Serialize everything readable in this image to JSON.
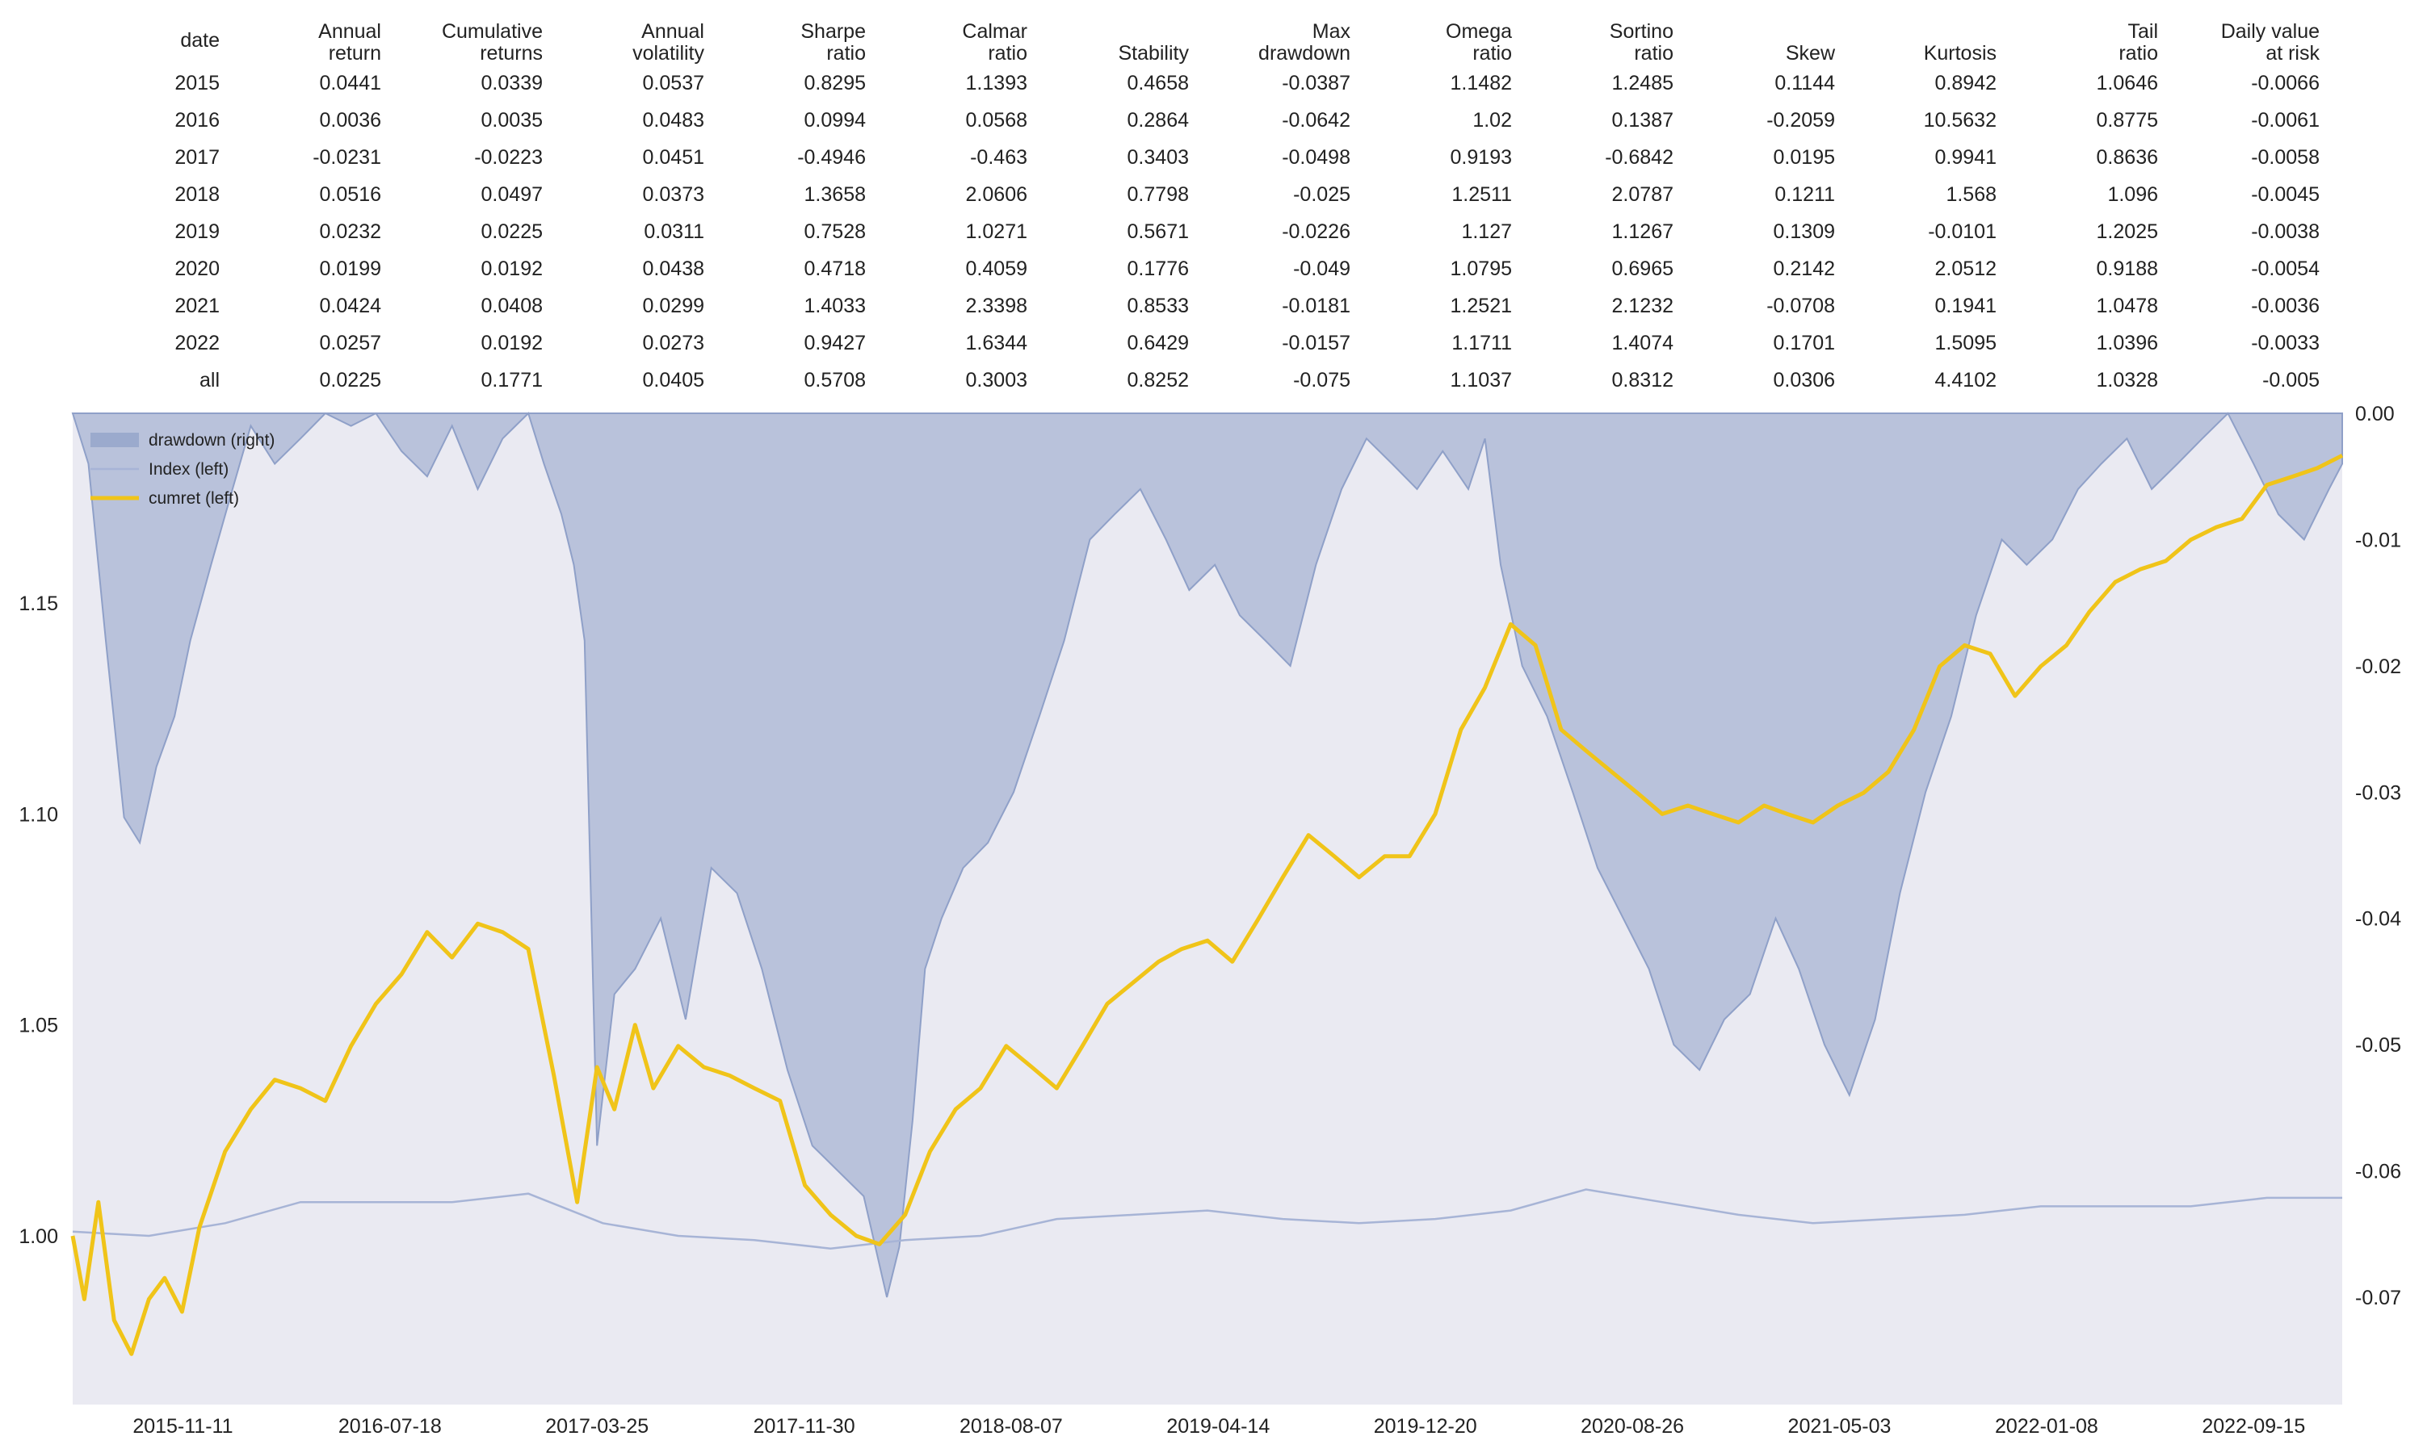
{
  "table": {
    "headers": [
      "date",
      "Annual\nreturn",
      "Cumulative\nreturns",
      "Annual\nvolatility",
      "Sharpe\nratio",
      "Calmar\nratio",
      "Stability",
      "Max\ndrawdown",
      "Omega\nratio",
      "Sortino\nratio",
      "Skew",
      "Kurtosis",
      "Tail\nratio",
      "Daily value\nat risk"
    ],
    "rows": [
      [
        "2015",
        "0.0441",
        "0.0339",
        "0.0537",
        "0.8295",
        "1.1393",
        "0.4658",
        "-0.0387",
        "1.1482",
        "1.2485",
        "0.1144",
        "0.8942",
        "1.0646",
        "-0.0066"
      ],
      [
        "2016",
        "0.0036",
        "0.0035",
        "0.0483",
        "0.0994",
        "0.0568",
        "0.2864",
        "-0.0642",
        "1.02",
        "0.1387",
        "-0.2059",
        "10.5632",
        "0.8775",
        "-0.0061"
      ],
      [
        "2017",
        "-0.0231",
        "-0.0223",
        "0.0451",
        "-0.4946",
        "-0.463",
        "0.3403",
        "-0.0498",
        "0.9193",
        "-0.6842",
        "0.0195",
        "0.9941",
        "0.8636",
        "-0.0058"
      ],
      [
        "2018",
        "0.0516",
        "0.0497",
        "0.0373",
        "1.3658",
        "2.0606",
        "0.7798",
        "-0.025",
        "1.2511",
        "2.0787",
        "0.1211",
        "1.568",
        "1.096",
        "-0.0045"
      ],
      [
        "2019",
        "0.0232",
        "0.0225",
        "0.0311",
        "0.7528",
        "1.0271",
        "0.5671",
        "-0.0226",
        "1.127",
        "1.1267",
        "0.1309",
        "-0.0101",
        "1.2025",
        "-0.0038"
      ],
      [
        "2020",
        "0.0199",
        "0.0192",
        "0.0438",
        "0.4718",
        "0.4059",
        "0.1776",
        "-0.049",
        "1.0795",
        "0.6965",
        "0.2142",
        "2.0512",
        "0.9188",
        "-0.0054"
      ],
      [
        "2021",
        "0.0424",
        "0.0408",
        "0.0299",
        "1.4033",
        "2.3398",
        "0.8533",
        "-0.0181",
        "1.2521",
        "2.1232",
        "-0.0708",
        "0.1941",
        "1.0478",
        "-0.0036"
      ],
      [
        "2022",
        "0.0257",
        "0.0192",
        "0.0273",
        "0.9427",
        "1.6344",
        "0.6429",
        "-0.0157",
        "1.1711",
        "1.4074",
        "0.1701",
        "1.5095",
        "1.0396",
        "-0.0033"
      ],
      [
        "all",
        "0.0225",
        "0.1771",
        "0.0405",
        "0.5708",
        "0.3003",
        "0.8252",
        "-0.075",
        "1.1037",
        "0.8312",
        "0.0306",
        "4.4102",
        "1.0328",
        "-0.005"
      ]
    ]
  },
  "chart_data": {
    "type": "line",
    "x_tick_labels": [
      "2015-11-11",
      "2016-07-18",
      "2017-03-25",
      "2017-11-30",
      "2018-08-07",
      "2019-04-14",
      "2019-12-20",
      "2020-08-26",
      "2021-05-03",
      "2022-01-08",
      "2022-09-15"
    ],
    "x_range": [
      "2015-07-01",
      "2022-12-31"
    ],
    "left_axis": {
      "ticks": [
        1.0,
        1.05,
        1.1,
        1.15
      ],
      "tick_labels": [
        "1.00",
        "1.05",
        "1.10",
        "1.15"
      ],
      "ylim": [
        0.96,
        1.195
      ]
    },
    "right_axis": {
      "ticks": [
        0.0,
        -0.01,
        -0.02,
        -0.03,
        -0.04,
        -0.05,
        -0.06,
        -0.07
      ],
      "tick_labels": [
        "0.00",
        "-0.01",
        "-0.02",
        "-0.03",
        "-0.04",
        "-0.05",
        "-0.06",
        "-0.07"
      ],
      "ylim": [
        -0.0785,
        0.0
      ]
    },
    "legend_position": "top-left",
    "grid": false,
    "series": [
      {
        "name": "drawdown (right)",
        "axis": "right",
        "style": "area",
        "color": "#8fa0c8",
        "x": [
          "2015-07-01",
          "2015-07-20",
          "2015-08-10",
          "2015-09-01",
          "2015-09-20",
          "2015-10-10",
          "2015-11-01",
          "2015-11-20",
          "2015-12-15",
          "2016-01-10",
          "2016-02-01",
          "2016-03-01",
          "2016-04-01",
          "2016-05-01",
          "2016-06-01",
          "2016-07-01",
          "2016-08-01",
          "2016-09-01",
          "2016-10-01",
          "2016-11-01",
          "2016-12-01",
          "2017-01-01",
          "2017-01-20",
          "2017-02-10",
          "2017-02-25",
          "2017-03-10",
          "2017-03-25",
          "2017-04-15",
          "2017-05-10",
          "2017-06-10",
          "2017-07-10",
          "2017-08-10",
          "2017-09-10",
          "2017-10-10",
          "2017-11-10",
          "2017-12-10",
          "2018-01-10",
          "2018-02-10",
          "2018-03-10",
          "2018-03-25",
          "2018-04-10",
          "2018-04-25",
          "2018-05-15",
          "2018-06-10",
          "2018-07-10",
          "2018-08-10",
          "2018-09-10",
          "2018-10-10",
          "2018-11-10",
          "2018-12-10",
          "2019-01-10",
          "2019-02-10",
          "2019-03-10",
          "2019-04-10",
          "2019-05-10",
          "2019-06-10",
          "2019-07-10",
          "2019-08-10",
          "2019-09-10",
          "2019-10-10",
          "2019-11-10",
          "2019-12-10",
          "2020-01-10",
          "2020-02-10",
          "2020-03-01",
          "2020-03-20",
          "2020-04-15",
          "2020-05-15",
          "2020-06-15",
          "2020-07-15",
          "2020-08-15",
          "2020-09-15",
          "2020-10-15",
          "2020-11-15",
          "2020-12-15",
          "2021-01-15",
          "2021-02-15",
          "2021-03-15",
          "2021-04-15",
          "2021-05-15",
          "2021-06-15",
          "2021-07-15",
          "2021-08-15",
          "2021-09-15",
          "2021-10-15",
          "2021-11-15",
          "2021-12-15",
          "2022-01-15",
          "2022-02-15",
          "2022-03-15",
          "2022-04-15",
          "2022-05-15",
          "2022-06-15",
          "2022-07-15",
          "2022-08-15",
          "2022-09-15",
          "2022-10-15",
          "2022-11-15",
          "2022-12-15",
          "2022-12-31"
        ],
        "values": [
          0.0,
          -0.004,
          -0.018,
          -0.032,
          -0.034,
          -0.028,
          -0.024,
          -0.018,
          -0.012,
          -0.006,
          -0.001,
          -0.004,
          -0.002,
          0.0,
          -0.001,
          0.0,
          -0.003,
          -0.005,
          -0.001,
          -0.006,
          -0.002,
          0.0,
          -0.004,
          -0.008,
          -0.012,
          -0.018,
          -0.058,
          -0.046,
          -0.044,
          -0.04,
          -0.048,
          -0.036,
          -0.038,
          -0.044,
          -0.052,
          -0.058,
          -0.06,
          -0.062,
          -0.07,
          -0.066,
          -0.056,
          -0.044,
          -0.04,
          -0.036,
          -0.034,
          -0.03,
          -0.024,
          -0.018,
          -0.01,
          -0.008,
          -0.006,
          -0.01,
          -0.014,
          -0.012,
          -0.016,
          -0.018,
          -0.02,
          -0.012,
          -0.006,
          -0.002,
          -0.004,
          -0.006,
          -0.003,
          -0.006,
          -0.002,
          -0.012,
          -0.02,
          -0.024,
          -0.03,
          -0.036,
          -0.04,
          -0.044,
          -0.05,
          -0.052,
          -0.048,
          -0.046,
          -0.04,
          -0.044,
          -0.05,
          -0.054,
          -0.048,
          -0.038,
          -0.03,
          -0.024,
          -0.016,
          -0.01,
          -0.012,
          -0.01,
          -0.006,
          -0.004,
          -0.002,
          -0.006,
          -0.004,
          -0.002,
          0.0,
          -0.004,
          -0.008,
          -0.01,
          -0.006,
          -0.004
        ]
      },
      {
        "name": "Index (left)",
        "axis": "left",
        "style": "line",
        "color": "#a7b4d6",
        "x": [
          "2015-07-01",
          "2015-10-01",
          "2016-01-01",
          "2016-04-01",
          "2016-07-01",
          "2016-10-01",
          "2017-01-01",
          "2017-04-01",
          "2017-07-01",
          "2017-10-01",
          "2018-01-01",
          "2018-04-01",
          "2018-07-01",
          "2018-10-01",
          "2019-01-01",
          "2019-04-01",
          "2019-07-01",
          "2019-10-01",
          "2020-01-01",
          "2020-04-01",
          "2020-07-01",
          "2020-10-01",
          "2021-01-01",
          "2021-04-01",
          "2021-07-01",
          "2021-10-01",
          "2022-01-01",
          "2022-04-01",
          "2022-07-01",
          "2022-10-01",
          "2022-12-31"
        ],
        "values": [
          1.001,
          1.0,
          1.003,
          1.008,
          1.008,
          1.008,
          1.01,
          1.003,
          1.0,
          0.999,
          0.997,
          0.999,
          1.0,
          1.004,
          1.005,
          1.006,
          1.004,
          1.003,
          1.004,
          1.006,
          1.011,
          1.008,
          1.005,
          1.003,
          1.004,
          1.005,
          1.007,
          1.007,
          1.007,
          1.009,
          1.009
        ]
      },
      {
        "name": "cumret (left)",
        "axis": "left",
        "style": "line",
        "color": "#f0c419",
        "x": [
          "2015-07-01",
          "2015-07-15",
          "2015-08-01",
          "2015-08-20",
          "2015-09-10",
          "2015-10-01",
          "2015-10-20",
          "2015-11-10",
          "2015-12-01",
          "2016-01-01",
          "2016-02-01",
          "2016-03-01",
          "2016-04-01",
          "2016-05-01",
          "2016-06-01",
          "2016-07-01",
          "2016-08-01",
          "2016-09-01",
          "2016-10-01",
          "2016-11-01",
          "2016-12-01",
          "2017-01-01",
          "2017-02-01",
          "2017-03-01",
          "2017-03-25",
          "2017-04-15",
          "2017-05-10",
          "2017-06-01",
          "2017-07-01",
          "2017-08-01",
          "2017-09-01",
          "2017-10-01",
          "2017-11-01",
          "2017-12-01",
          "2018-01-01",
          "2018-02-01",
          "2018-03-01",
          "2018-04-01",
          "2018-05-01",
          "2018-06-01",
          "2018-07-01",
          "2018-08-01",
          "2018-09-01",
          "2018-10-01",
          "2018-11-01",
          "2018-12-01",
          "2019-01-01",
          "2019-02-01",
          "2019-03-01",
          "2019-04-01",
          "2019-05-01",
          "2019-06-01",
          "2019-07-01",
          "2019-08-01",
          "2019-09-01",
          "2019-10-01",
          "2019-11-01",
          "2019-12-01",
          "2020-01-01",
          "2020-02-01",
          "2020-03-01",
          "2020-04-01",
          "2020-05-01",
          "2020-06-01",
          "2020-07-01",
          "2020-08-01",
          "2020-09-01",
          "2020-10-01",
          "2020-11-01",
          "2020-12-01",
          "2021-01-01",
          "2021-02-01",
          "2021-03-01",
          "2021-04-01",
          "2021-05-01",
          "2021-06-01",
          "2021-07-01",
          "2021-08-01",
          "2021-09-01",
          "2021-10-01",
          "2021-11-01",
          "2021-12-01",
          "2022-01-01",
          "2022-02-01",
          "2022-03-01",
          "2022-04-01",
          "2022-05-01",
          "2022-06-01",
          "2022-07-01",
          "2022-08-01",
          "2022-09-01",
          "2022-10-01",
          "2022-11-01",
          "2022-12-01",
          "2022-12-31"
        ],
        "values": [
          1.0,
          0.985,
          1.008,
          0.98,
          0.972,
          0.985,
          0.99,
          0.982,
          1.002,
          1.02,
          1.03,
          1.037,
          1.035,
          1.032,
          1.045,
          1.055,
          1.062,
          1.072,
          1.066,
          1.074,
          1.072,
          1.068,
          1.038,
          1.008,
          1.04,
          1.03,
          1.05,
          1.035,
          1.045,
          1.04,
          1.038,
          1.035,
          1.032,
          1.012,
          1.005,
          1.0,
          0.998,
          1.005,
          1.02,
          1.03,
          1.035,
          1.045,
          1.04,
          1.035,
          1.045,
          1.055,
          1.06,
          1.065,
          1.068,
          1.07,
          1.065,
          1.075,
          1.085,
          1.095,
          1.09,
          1.085,
          1.09,
          1.09,
          1.1,
          1.12,
          1.13,
          1.145,
          1.14,
          1.12,
          1.115,
          1.11,
          1.105,
          1.1,
          1.102,
          1.1,
          1.098,
          1.102,
          1.1,
          1.098,
          1.102,
          1.105,
          1.11,
          1.12,
          1.135,
          1.14,
          1.138,
          1.128,
          1.135,
          1.14,
          1.148,
          1.155,
          1.158,
          1.16,
          1.165,
          1.168,
          1.17,
          1.178,
          1.18,
          1.182,
          1.185
        ]
      }
    ]
  }
}
